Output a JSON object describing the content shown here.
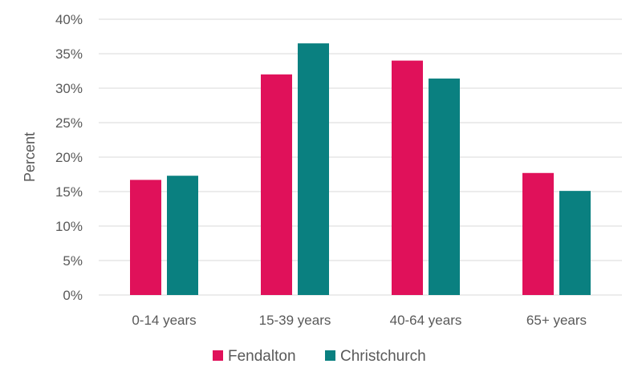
{
  "chart_data": {
    "type": "bar",
    "title": "",
    "xlabel": "",
    "ylabel": "Percent",
    "ylim": [
      0,
      40
    ],
    "y_tick_values": [
      0,
      5,
      10,
      15,
      20,
      25,
      30,
      35,
      40
    ],
    "y_tick_labels": [
      "0%",
      "5%",
      "10%",
      "15%",
      "20%",
      "25%",
      "30%",
      "35%",
      "40%"
    ],
    "categories": [
      "0-14 years",
      "15-39 years",
      "40-64 years",
      "65+ years"
    ],
    "series": [
      {
        "name": "Fendalton",
        "color": "#e0115a",
        "values": [
          16.7,
          32.0,
          34.0,
          17.7
        ]
      },
      {
        "name": "Christchurch",
        "color": "#0a8080",
        "values": [
          17.3,
          36.5,
          31.4,
          15.1
        ]
      }
    ],
    "grid": true,
    "legend_position": "bottom"
  }
}
